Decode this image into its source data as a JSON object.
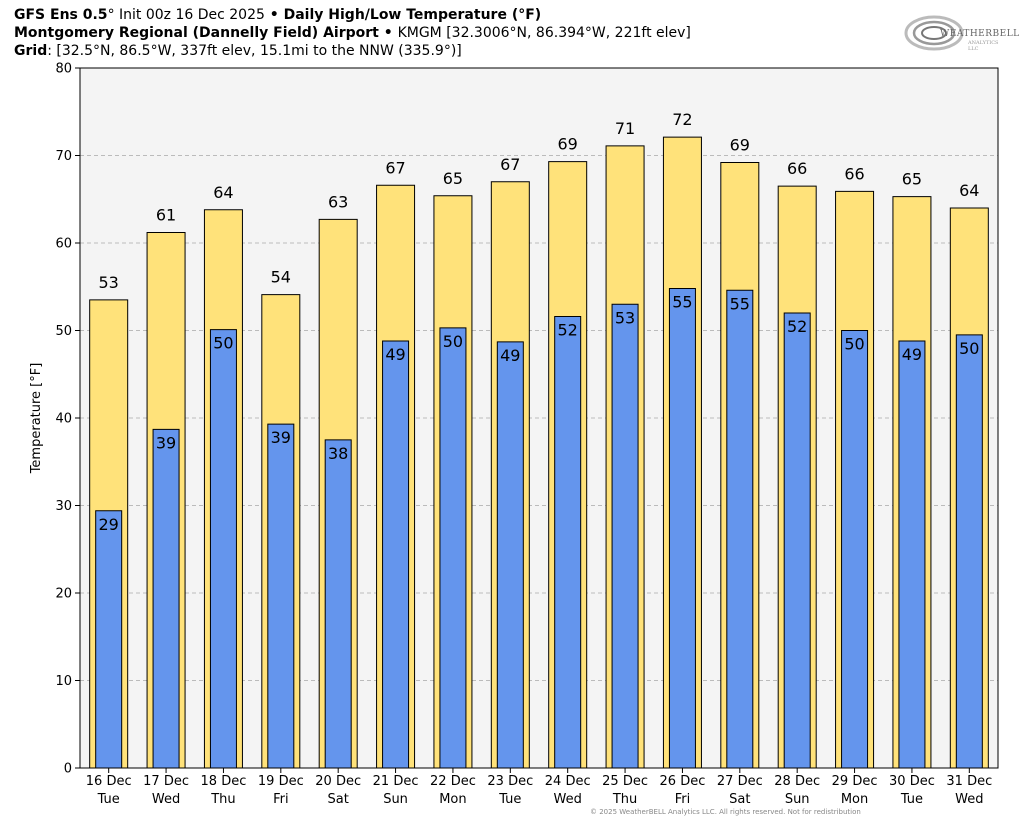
{
  "header": {
    "line1_model": "GFS Ens 0.5",
    "line1_deg": "°",
    "line1_init": " Init 00z 16 Dec 2025",
    "line1_bullet": " • ",
    "line1_product": "Daily High/Low Temperature (°F)",
    "line2_station": "Montgomery Regional (Dannelly Field) Airport",
    "line2_bullet": " • ",
    "line2_info": "KMGM [32.3006°N, 86.394°W, 221ft elev]",
    "line3_label": "Grid",
    "line3_info": ": [32.5°N, 86.5°W, 337ft elev, 15.1mi to the NNW (335.9°)]"
  },
  "logo": {
    "text": "WEATHERBELL",
    "sub": "ANALYTICS LLC",
    "icon": "swirl-logo-icon"
  },
  "copyright": "© 2025 WeatherBELL Analytics LLC. All rights reserved. Not for redistribution",
  "colors": {
    "high": "#FFE27A",
    "low": "#6495ED",
    "plot_bg": "#F4F4F4",
    "grid": "#BBBBBB",
    "edge": "#000000"
  },
  "chart_data": {
    "type": "bar",
    "ylabel": "Temperature [°F]",
    "ylim": [
      0,
      80
    ],
    "yticks": [
      0,
      10,
      20,
      30,
      40,
      50,
      60,
      70,
      80
    ],
    "grid": true,
    "categories": [
      {
        "date": "16 Dec",
        "day": "Tue"
      },
      {
        "date": "17 Dec",
        "day": "Wed"
      },
      {
        "date": "18 Dec",
        "day": "Thu"
      },
      {
        "date": "19 Dec",
        "day": "Fri"
      },
      {
        "date": "20 Dec",
        "day": "Sat"
      },
      {
        "date": "21 Dec",
        "day": "Sun"
      },
      {
        "date": "22 Dec",
        "day": "Mon"
      },
      {
        "date": "23 Dec",
        "day": "Tue"
      },
      {
        "date": "24 Dec",
        "day": "Wed"
      },
      {
        "date": "25 Dec",
        "day": "Thu"
      },
      {
        "date": "26 Dec",
        "day": "Fri"
      },
      {
        "date": "27 Dec",
        "day": "Sat"
      },
      {
        "date": "28 Dec",
        "day": "Sun"
      },
      {
        "date": "29 Dec",
        "day": "Mon"
      },
      {
        "date": "30 Dec",
        "day": "Tue"
      },
      {
        "date": "31 Dec",
        "day": "Wed"
      }
    ],
    "series": [
      {
        "key": "high",
        "values": [
          53.5,
          61.2,
          63.8,
          54.1,
          62.7,
          66.6,
          65.4,
          67.0,
          69.3,
          71.1,
          72.1,
          69.2,
          66.5,
          65.9,
          65.3,
          64.0
        ],
        "labels": [
          "53",
          "61",
          "64",
          "54",
          "63",
          "67",
          "65",
          "67",
          "69",
          "71",
          "72",
          "69",
          "66",
          "66",
          "65",
          "64"
        ]
      },
      {
        "key": "low",
        "values": [
          29.4,
          38.7,
          50.1,
          39.3,
          37.5,
          48.8,
          50.3,
          48.7,
          51.6,
          53.0,
          54.8,
          54.6,
          52.0,
          50.0,
          48.8,
          49.5
        ],
        "labels": [
          "29",
          "39",
          "50",
          "39",
          "38",
          "49",
          "50",
          "49",
          "52",
          "53",
          "55",
          "55",
          "52",
          "50",
          "49",
          "50"
        ]
      }
    ]
  }
}
